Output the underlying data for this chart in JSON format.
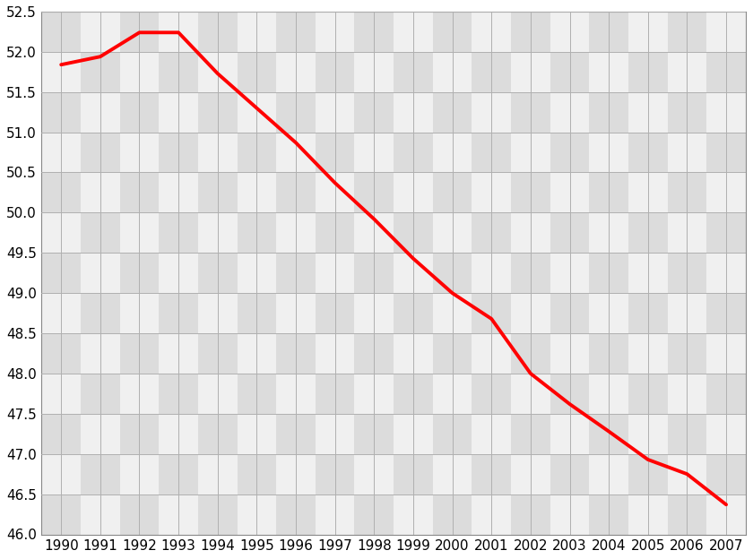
{
  "years": [
    1990,
    1991,
    1992,
    1993,
    1994,
    1995,
    1996,
    1997,
    1998,
    1999,
    2000,
    2001,
    2002,
    2003,
    2004,
    2005,
    2006,
    2007
  ],
  "population": [
    51.84,
    51.94,
    52.24,
    52.24,
    51.73,
    51.3,
    50.87,
    50.37,
    49.92,
    49.43,
    49.0,
    48.68,
    48.0,
    47.62,
    47.28,
    46.93,
    46.75,
    46.37
  ],
  "line_color": "#ff0000",
  "line_width": 2.8,
  "ylim": [
    46.0,
    52.5
  ],
  "ytick_step": 0.5,
  "checker_dark": "#dcdcdc",
  "checker_light": "#f0f0f0",
  "grid_color": "#b0b0b0",
  "tick_fontsize": 11
}
